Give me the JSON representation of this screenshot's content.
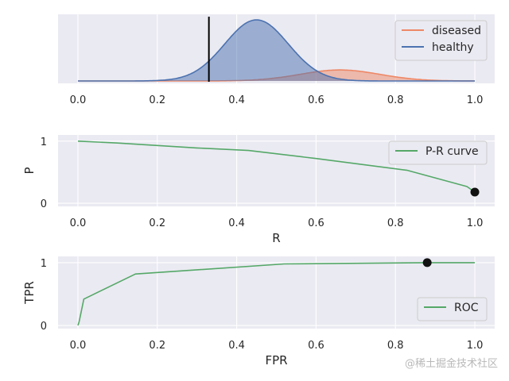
{
  "watermark": "@稀土掘金技术社区",
  "chart_data": [
    {
      "type": "area",
      "xlim": [
        -0.05,
        1.05
      ],
      "x_ticks": [
        "0.0",
        "0.2",
        "0.4",
        "0.6",
        "0.8",
        "1.0"
      ],
      "grid": true,
      "legend_position": "top-right",
      "threshold": 0.33,
      "series": [
        {
          "name": "diseased",
          "color": "#ee8866",
          "mean": 0.66,
          "sd": 0.1,
          "peak": 0.18
        },
        {
          "name": "healthy",
          "color": "#4c72b0",
          "mean": 0.45,
          "sd": 0.08,
          "peak": 1.0
        }
      ]
    },
    {
      "type": "line",
      "xlabel": "R",
      "ylabel": "P",
      "xlim": [
        -0.05,
        1.05
      ],
      "ylim": [
        -0.05,
        1.1
      ],
      "x_ticks": [
        "0.0",
        "0.2",
        "0.4",
        "0.6",
        "0.8",
        "1.0"
      ],
      "y_ticks": [
        "0",
        "1"
      ],
      "grid": true,
      "legend_position": "top-right",
      "series": [
        {
          "name": "P-R curve",
          "color": "#55a868",
          "x": [
            0.0,
            0.1,
            0.2,
            0.3,
            0.43,
            0.6,
            0.83,
            0.98,
            1.0
          ],
          "y": [
            1.0,
            0.97,
            0.93,
            0.89,
            0.85,
            0.72,
            0.53,
            0.27,
            0.18
          ]
        }
      ],
      "marker": {
        "x": 1.0,
        "y": 0.18
      }
    },
    {
      "type": "line",
      "xlabel": "FPR",
      "ylabel": "TPR",
      "xlim": [
        -0.05,
        1.05
      ],
      "ylim": [
        -0.05,
        1.1
      ],
      "x_ticks": [
        "0.0",
        "0.2",
        "0.4",
        "0.6",
        "0.8",
        "1.0"
      ],
      "y_ticks": [
        "0",
        "1"
      ],
      "grid": true,
      "legend_position": "lower-right",
      "series": [
        {
          "name": "ROC",
          "color": "#55a868",
          "x": [
            0.0,
            0.003,
            0.015,
            0.145,
            0.52,
            0.88,
            1.0
          ],
          "y": [
            0.0,
            0.06,
            0.42,
            0.82,
            0.98,
            1.0,
            1.0
          ]
        }
      ],
      "marker": {
        "x": 0.88,
        "y": 1.0
      }
    }
  ]
}
